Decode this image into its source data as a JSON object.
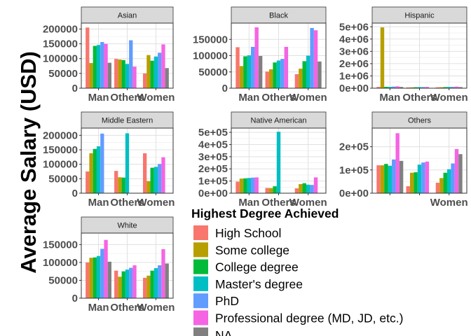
{
  "chart_data": {
    "type": "bar",
    "ylabel": "Average Salary (USD)",
    "legend": {
      "title": "Highest Degree Achieved",
      "placement": "bottom-right"
    },
    "series": [
      {
        "name": "High School",
        "color": "#F8766D"
      },
      {
        "name": "Some college",
        "color": "#B79F00"
      },
      {
        "name": "College degree",
        "color": "#00BA38"
      },
      {
        "name": "Master's degree",
        "color": "#00BFC4"
      },
      {
        "name": "PhD",
        "color": "#619CFF"
      },
      {
        "name": "Professional degree (MD, JD, etc.)",
        "color": "#F564E3"
      },
      {
        "name": "NA",
        "color": "#808080"
      }
    ],
    "panels": [
      {
        "facet": "Asian",
        "x_tick_labels": [
          "Man",
          "Others",
          "Women"
        ],
        "y_ticks": [
          0,
          50000,
          100000,
          150000,
          200000
        ],
        "y_tick_labels": [
          "0",
          "50000",
          "100000",
          "150000",
          "200000"
        ],
        "ylim": [
          0,
          220000
        ],
        "values": [
          [
            205000,
            85000,
            143000,
            146000,
            156000,
            150000,
            86000
          ],
          [
            99000,
            97000,
            95000,
            82000,
            162000,
            73000,
            null
          ],
          [
            50000,
            112000,
            93000,
            107000,
            120000,
            148000,
            68000
          ]
        ]
      },
      {
        "facet": "Black",
        "x_tick_labels": [
          "Man",
          "Others",
          "Women"
        ],
        "y_ticks": [
          0,
          50000,
          100000,
          150000
        ],
        "y_tick_labels": [
          "0",
          "50000",
          "100000",
          "150000"
        ],
        "ylim": [
          0,
          200000
        ],
        "values": [
          [
            126000,
            68000,
            98000,
            101000,
            127000,
            187000,
            99000
          ],
          [
            51000,
            58000,
            79000,
            85000,
            90000,
            127000,
            null
          ],
          [
            43000,
            60000,
            83000,
            100000,
            185000,
            178000,
            82000
          ]
        ]
      },
      {
        "facet": "Hispanic",
        "x_tick_labels": [
          "Man",
          "Others",
          "Women"
        ],
        "y_ticks": [
          0,
          1000000,
          2000000,
          3000000,
          4000000,
          5000000
        ],
        "y_tick_labels": [
          "0e+00",
          "1e+06",
          "2e+06",
          "3e+06",
          "4e+06",
          "5e+06"
        ],
        "ylim": [
          0,
          5300000
        ],
        "values": [
          [
            100000,
            4950000,
            110000,
            105000,
            130000,
            150000,
            100000
          ],
          [
            60000,
            70000,
            80000,
            90000,
            95000,
            100000,
            null
          ],
          [
            70000,
            80000,
            90000,
            100000,
            110000,
            130000,
            90000
          ]
        ]
      },
      {
        "facet": "Middle Eastern",
        "x_tick_labels": [
          "Man",
          "Others",
          "Women"
        ],
        "y_ticks": [
          0,
          50000,
          100000,
          150000,
          200000
        ],
        "y_tick_labels": [
          "0",
          "50000",
          "100000",
          "150000",
          "200000"
        ],
        "ylim": [
          0,
          225000
        ],
        "values": [
          [
            75000,
            138000,
            153000,
            162000,
            206000,
            null,
            null
          ],
          [
            77000,
            55000,
            54000,
            207000,
            null,
            null,
            null
          ],
          [
            138000,
            42000,
            88000,
            91000,
            101000,
            124000,
            null
          ]
        ]
      },
      {
        "facet": "Native American",
        "x_tick_labels": [
          "Man",
          "Others",
          "Women"
        ],
        "y_ticks": [
          0,
          100000,
          200000,
          300000,
          400000,
          500000
        ],
        "y_tick_labels": [
          "0e+00",
          "1e+05",
          "2e+05",
          "3e+05",
          "4e+05",
          "5e+05"
        ],
        "ylim": [
          0,
          535000
        ],
        "values": [
          [
            95000,
            120000,
            122000,
            125000,
            128000,
            130000,
            null
          ],
          [
            43000,
            42000,
            57000,
            505000,
            null,
            null,
            null
          ],
          [
            40000,
            75000,
            82000,
            70000,
            68000,
            130000,
            null
          ]
        ]
      },
      {
        "facet": "Others",
        "x_tick_labels": [
          "",
          "",
          "Women"
        ],
        "y_ticks": [
          0,
          100000,
          200000
        ],
        "y_tick_labels": [
          "0e+00",
          "1e+05",
          "2e+05"
        ],
        "ylim": [
          0,
          280000
        ],
        "values": [
          [
            120000,
            120000,
            126000,
            118000,
            145000,
            258000,
            139000
          ],
          [
            30000,
            88000,
            90000,
            123000,
            132000,
            136000,
            null
          ],
          [
            45000,
            65000,
            88000,
            103000,
            128000,
            190000,
            168000
          ]
        ]
      },
      {
        "facet": "White",
        "x_tick_labels": [
          "Man",
          "Others",
          "Women"
        ],
        "y_ticks": [
          0,
          50000,
          100000,
          150000
        ],
        "y_tick_labels": [
          "0",
          "50000",
          "100000",
          "150000"
        ],
        "ylim": [
          0,
          182000
        ],
        "values": [
          [
            100000,
            113000,
            114000,
            118000,
            138000,
            163000,
            102000
          ],
          [
            77000,
            60000,
            75000,
            80000,
            85000,
            92000,
            null
          ],
          [
            57000,
            63000,
            77000,
            84000,
            92000,
            137000,
            97000
          ]
        ]
      }
    ]
  }
}
